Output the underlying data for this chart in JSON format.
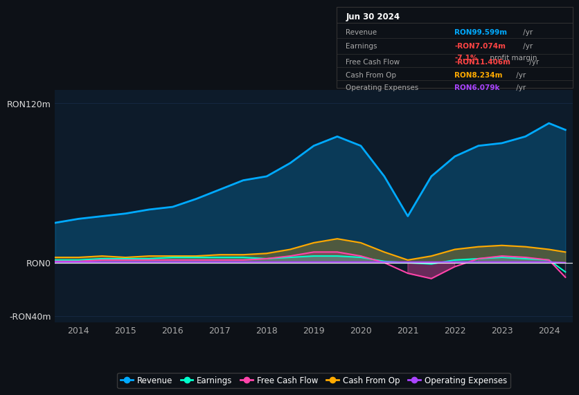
{
  "bg_color": "#0d1117",
  "plot_bg_color": "#0d1b2a",
  "title": "Jun 30 2024",
  "years": [
    2013.5,
    2014,
    2014.5,
    2015,
    2015.5,
    2016,
    2016.5,
    2017,
    2017.5,
    2018,
    2018.5,
    2019,
    2019.5,
    2020,
    2020.5,
    2021,
    2021.5,
    2022,
    2022.5,
    2023,
    2023.5,
    2024,
    2024.35
  ],
  "revenue": [
    30,
    33,
    35,
    37,
    40,
    42,
    48,
    55,
    62,
    65,
    75,
    88,
    95,
    88,
    65,
    35,
    65,
    80,
    88,
    90,
    95,
    105,
    100
  ],
  "earnings": [
    2,
    2,
    3,
    3,
    3,
    4,
    4,
    4,
    4,
    3,
    4,
    5,
    5,
    4,
    1,
    0,
    -1,
    2,
    3,
    4,
    3,
    2,
    -7
  ],
  "free_cash_flow": [
    1,
    1,
    2,
    2,
    2,
    2,
    2,
    2,
    2,
    3,
    5,
    8,
    8,
    5,
    0,
    -8,
    -12,
    -3,
    3,
    5,
    4,
    2,
    -11
  ],
  "cash_from_op": [
    4,
    4,
    5,
    4,
    5,
    5,
    5,
    6,
    6,
    7,
    10,
    15,
    18,
    15,
    8,
    2,
    5,
    10,
    12,
    13,
    12,
    10,
    8
  ],
  "operating_expenses": [
    0.5,
    0.5,
    0.5,
    0.5,
    0.5,
    0.5,
    0.5,
    0.5,
    0.5,
    0.5,
    0.5,
    0.5,
    0.5,
    0.5,
    0.5,
    0.5,
    0.5,
    0.5,
    0.5,
    0.5,
    0.5,
    0.5,
    0.006
  ],
  "ylim": [
    -45,
    130
  ],
  "yticks": [
    -40,
    0,
    120
  ],
  "ytick_labels": [
    "-RON40m",
    "RON0",
    "RON120m"
  ],
  "xticks": [
    2014,
    2015,
    2016,
    2017,
    2018,
    2019,
    2020,
    2021,
    2022,
    2023,
    2024
  ],
  "revenue_color": "#00aaff",
  "earnings_color": "#00ffcc",
  "free_cash_flow_color": "#ff44aa",
  "cash_from_op_color": "#ffaa00",
  "operating_expenses_color": "#aa44ff",
  "grid_color": "#1e3a5f",
  "zero_line_color": "#ffffff",
  "legend_labels": [
    "Revenue",
    "Earnings",
    "Free Cash Flow",
    "Cash From Op",
    "Operating Expenses"
  ],
  "legend_colors": [
    "#00aaff",
    "#00ffcc",
    "#ff44aa",
    "#ffaa00",
    "#aa44ff"
  ],
  "info_rows": [
    {
      "label": "Revenue",
      "value": "RON99.599m",
      "unit": " /yr",
      "val_color": "#00aaff",
      "extra": null
    },
    {
      "label": "Earnings",
      "value": "-RON7.074m",
      "unit": " /yr",
      "val_color": "#ff4444",
      "extra": {
        "pct": "-7.1%",
        "txt": " profit margin",
        "pct_color": "#ff4444",
        "txt_color": "#aaaaaa"
      }
    },
    {
      "label": "Free Cash Flow",
      "value": "-RON11.406m",
      "unit": " /yr",
      "val_color": "#ff4444",
      "extra": null
    },
    {
      "label": "Cash From Op",
      "value": "RON8.234m",
      "unit": " /yr",
      "val_color": "#ffaa00",
      "extra": null
    },
    {
      "label": "Operating Expenses",
      "value": "RON6.079k",
      "unit": " /yr",
      "val_color": "#aa44ff",
      "extra": null
    }
  ]
}
